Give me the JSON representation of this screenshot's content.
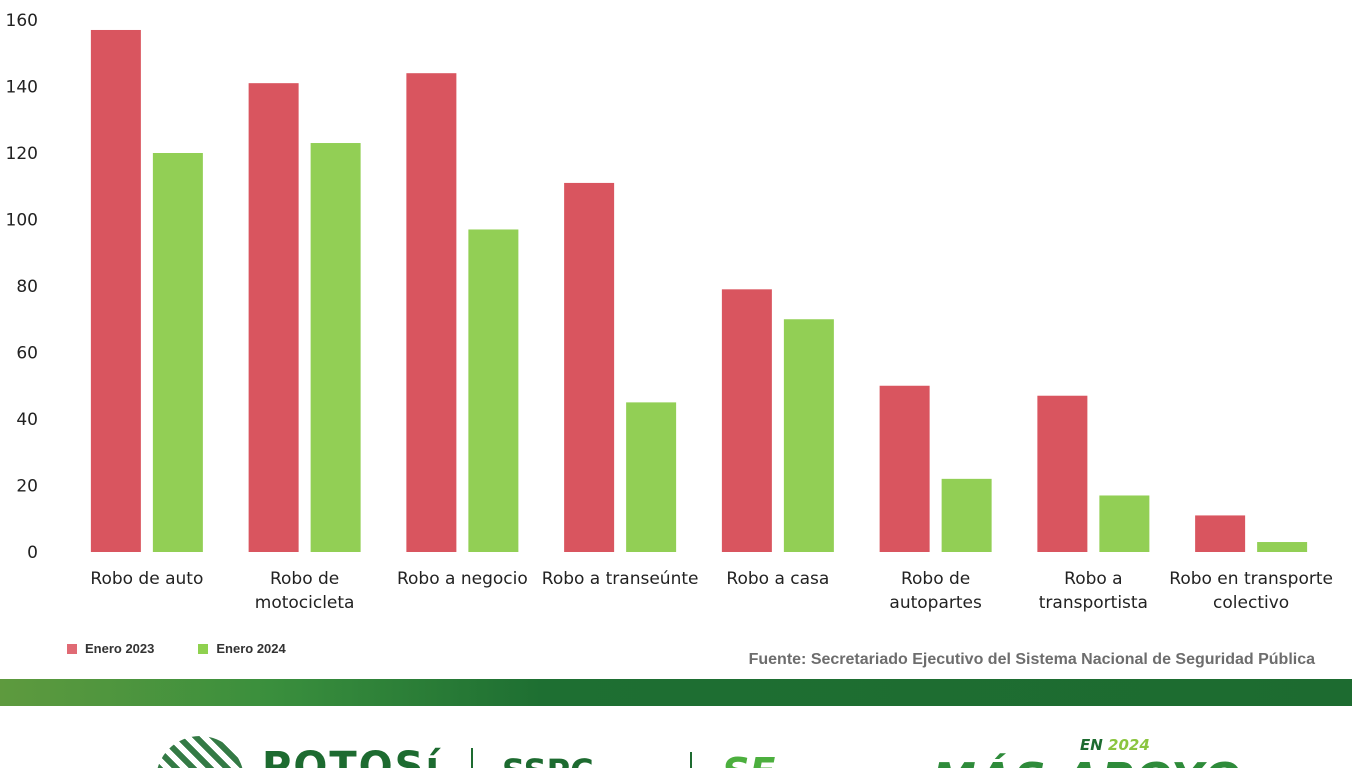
{
  "chart_data": {
    "type": "bar",
    "categories": [
      [
        "Robo de auto"
      ],
      [
        "Robo de",
        "motocicleta"
      ],
      [
        "Robo a negocio"
      ],
      [
        "Robo a transeúnte"
      ],
      [
        "Robo a casa"
      ],
      [
        "Robo de",
        "autopartes"
      ],
      [
        "Robo a",
        "transportista"
      ],
      [
        "Robo en transporte",
        "colectivo"
      ]
    ],
    "series": [
      {
        "name": "Enero 2023",
        "color": "#d9555f",
        "values": [
          157,
          141,
          144,
          111,
          79,
          50,
          47,
          11
        ]
      },
      {
        "name": "Enero 2024",
        "color": "#92cf55",
        "values": [
          120,
          123,
          97,
          45,
          70,
          22,
          17,
          3
        ]
      }
    ],
    "yticks": [
      "0",
      "20",
      "40",
      "60",
      "80",
      "100",
      "120",
      "140",
      "160"
    ],
    "ylim": [
      0,
      160
    ],
    "grid": false,
    "legend_position": "bottom-left"
  },
  "legend": {
    "items": [
      {
        "label": "Enero 2023",
        "color": "#e06a74"
      },
      {
        "label": "Enero 2024",
        "color": "#8fd14f"
      }
    ]
  },
  "source": "Fuente: Secretariado Ejecutivo del Sistema Nacional de Seguridad Pública",
  "footer": {
    "logo_word": "POTOSí",
    "sspc": "SSPC",
    "se": "SE",
    "en_prefix": "EN",
    "en_year": "2024",
    "slogan": "MÁS APOYO"
  }
}
